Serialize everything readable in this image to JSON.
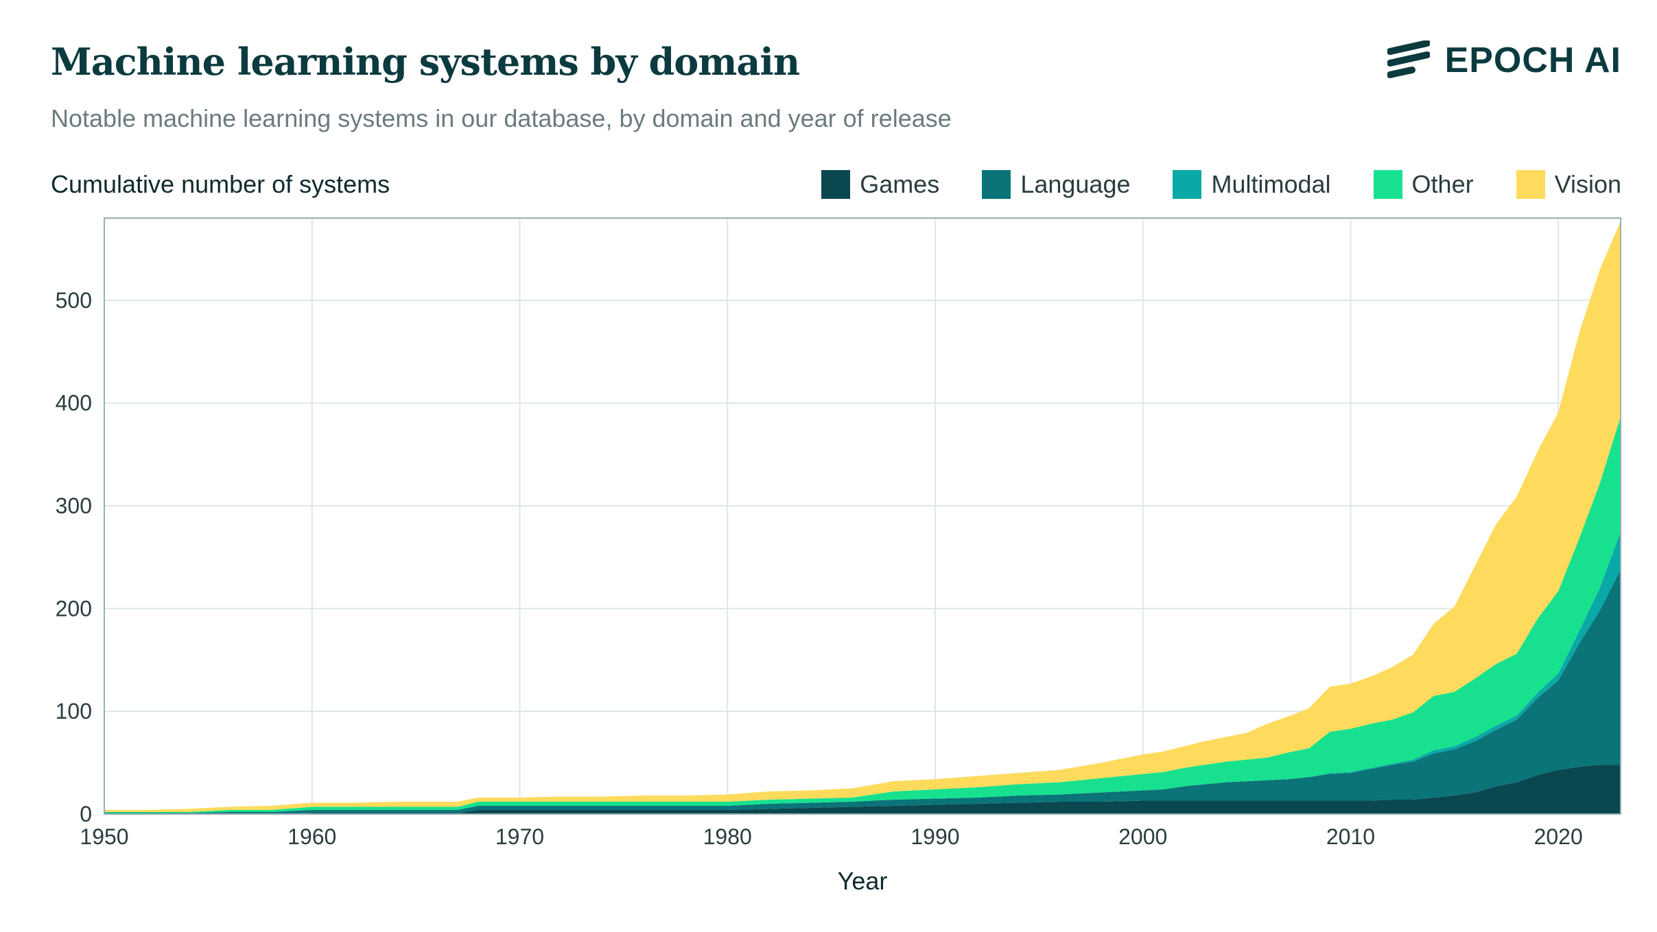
{
  "header": {
    "title": "Machine learning systems by domain",
    "subtitle": "Notable machine learning systems in our database, by domain and year of release",
    "logo_text": "EPOCH AI"
  },
  "colors": {
    "Games": "#0b474f",
    "Language": "#0a7479",
    "Multimodal": "#0aa8a6",
    "Other": "#17e18e",
    "Vision": "#fedb5c",
    "grid": "#dde6e6",
    "frame": "#98aeb3"
  },
  "chart_data": {
    "type": "area",
    "stacked": true,
    "title": "Machine learning systems by domain",
    "subtitle": "Notable machine learning systems in our database, by domain and year of release",
    "xlabel": "Year",
    "ylabel": "Cumulative number of systems",
    "xlim": [
      1950,
      2023
    ],
    "ylim": [
      0,
      580
    ],
    "xticks": [
      1950,
      1960,
      1970,
      1980,
      1990,
      2000,
      2010,
      2020
    ],
    "yticks": [
      0,
      100,
      200,
      300,
      400,
      500
    ],
    "grid": true,
    "legend_position": "top-right",
    "x": [
      1950,
      1952,
      1954,
      1956,
      1958,
      1960,
      1962,
      1964,
      1966,
      1967,
      1968,
      1970,
      1972,
      1974,
      1976,
      1978,
      1980,
      1982,
      1984,
      1986,
      1988,
      1990,
      1992,
      1994,
      1996,
      1998,
      2000,
      2001,
      2002,
      2003,
      2004,
      2005,
      2006,
      2007,
      2008,
      2009,
      2010,
      2011,
      2012,
      2013,
      2014,
      2015,
      2016,
      2017,
      2018,
      2019,
      2020,
      2021,
      2022,
      2023
    ],
    "series": [
      {
        "name": "Games",
        "values": [
          0,
          0,
          0,
          0,
          0,
          1,
          1,
          1,
          1,
          1,
          4,
          4,
          4,
          4,
          4,
          4,
          4,
          5,
          6,
          7,
          8,
          9,
          10,
          11,
          12,
          12,
          13,
          13,
          13,
          13,
          13,
          13,
          13,
          13,
          13,
          13,
          13,
          13,
          14,
          14,
          16,
          18,
          21,
          27,
          31,
          38,
          43,
          46,
          48,
          48
        ]
      },
      {
        "name": "Language",
        "values": [
          1,
          1,
          1,
          2,
          2,
          3,
          3,
          3,
          3,
          3,
          4,
          4,
          4,
          4,
          4,
          4,
          4,
          5,
          5,
          5,
          6,
          6,
          6,
          7,
          7,
          9,
          10,
          11,
          14,
          16,
          18,
          19,
          20,
          21,
          23,
          26,
          27,
          31,
          34,
          37,
          43,
          45,
          50,
          55,
          61,
          75,
          87,
          120,
          150,
          190
        ]
      },
      {
        "name": "Multimodal",
        "values": [
          0,
          0,
          0,
          0,
          0,
          0,
          0,
          0,
          0,
          0,
          0,
          0,
          0,
          0,
          0,
          0,
          0,
          0,
          0,
          0,
          0,
          0,
          0,
          0,
          0,
          0,
          0,
          0,
          0,
          0,
          0,
          0,
          0,
          0,
          0,
          1,
          1,
          1,
          1,
          2,
          3,
          3,
          4,
          4,
          4,
          5,
          7,
          12,
          22,
          37
        ]
      },
      {
        "name": "Other",
        "values": [
          1,
          1,
          1,
          2,
          2,
          3,
          3,
          3,
          3,
          3,
          4,
          4,
          4,
          4,
          4,
          4,
          4,
          4,
          4,
          4,
          8,
          9,
          10,
          11,
          12,
          14,
          16,
          17,
          18,
          19,
          20,
          21,
          22,
          26,
          28,
          40,
          42,
          43,
          43,
          46,
          53,
          53,
          57,
          60,
          60,
          72,
          80,
          90,
          102,
          112
        ]
      },
      {
        "name": "Vision",
        "values": [
          2,
          2,
          3,
          3,
          4,
          4,
          4,
          5,
          5,
          5,
          4,
          4,
          5,
          5,
          6,
          6,
          7,
          8,
          8,
          9,
          10,
          10,
          11,
          11,
          12,
          15,
          19,
          20,
          21,
          23,
          24,
          26,
          33,
          35,
          39,
          44,
          44,
          46,
          51,
          56,
          70,
          83,
          110,
          136,
          153,
          163,
          174,
          200,
          208,
          190
        ]
      }
    ]
  }
}
